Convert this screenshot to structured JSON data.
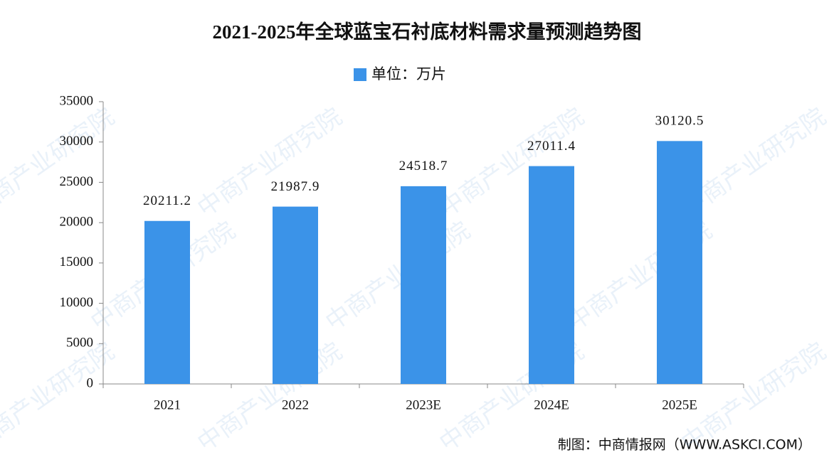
{
  "chart_data": {
    "type": "bar",
    "title": "2021-2025年全球蓝宝石衬底材料需求量预测趋势图",
    "categories": [
      "2021",
      "2022",
      "2023E",
      "2024E",
      "2025E"
    ],
    "series": [
      {
        "name": "单位：万片",
        "color": "#3b93e8",
        "values": [
          20211.2,
          21987.9,
          24518.7,
          27011.4,
          30120.5
        ]
      }
    ],
    "ylim": [
      0,
      35000
    ],
    "yticks": [
      0,
      5000,
      10000,
      15000,
      20000,
      25000,
      30000,
      35000
    ],
    "grid": false,
    "legend": "top",
    "source": "制图：中商情报网（WWW.ASKCI.COM）",
    "watermark": "中商产业研究院"
  }
}
